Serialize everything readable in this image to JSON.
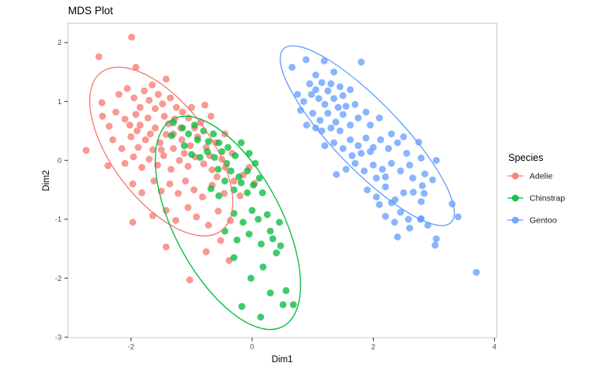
{
  "title": "MDS Plot",
  "chart_data": {
    "type": "scatter",
    "title": "MDS Plot",
    "xlabel": "Dim1",
    "ylabel": "Dim2",
    "xlim": [
      -3.04,
      4.04
    ],
    "ylim": [
      -3.01,
      2.33
    ],
    "x_ticks": [
      -2,
      0,
      2,
      4
    ],
    "y_ticks": [
      2,
      1,
      0,
      -1,
      -2,
      -3
    ],
    "grid": false,
    "point_radius_px": 4.4,
    "point_alpha": 0.75,
    "legend": {
      "title": "Species",
      "position": "right"
    },
    "series": [
      {
        "name": "Adelie",
        "color": "#F8766D",
        "points": [
          [
            -1.99,
            2.09
          ],
          [
            -2.53,
            1.76
          ],
          [
            -1.92,
            1.58
          ],
          [
            -1.42,
            1.38
          ],
          [
            -2.48,
            0.98
          ],
          [
            -1.65,
            1.28
          ],
          [
            -2.2,
            1.12
          ],
          [
            -2.06,
            1.22
          ],
          [
            -1.95,
            1.06
          ],
          [
            -1.78,
            1.18
          ],
          [
            -1.7,
            1.02
          ],
          [
            -1.55,
            1.12
          ],
          [
            -1.48,
            0.96
          ],
          [
            -1.35,
            1.06
          ],
          [
            -1.25,
            0.9
          ],
          [
            -0.78,
            0.94
          ],
          [
            -2.47,
            0.75
          ],
          [
            -2.36,
            0.58
          ],
          [
            -2.1,
            0.7
          ],
          [
            -1.92,
            0.78
          ],
          [
            -1.85,
            0.6
          ],
          [
            -1.72,
            0.72
          ],
          [
            -1.6,
            0.55
          ],
          [
            -1.45,
            0.75
          ],
          [
            -1.38,
            0.62
          ],
          [
            -1.28,
            0.7
          ],
          [
            -1.18,
            0.55
          ],
          [
            -1.05,
            0.72
          ],
          [
            -0.95,
            0.55
          ],
          [
            -0.85,
            0.64
          ],
          [
            -2.74,
            0.17
          ],
          [
            -2.3,
            0.35
          ],
          [
            -2.15,
            0.2
          ],
          [
            -2.0,
            0.4
          ],
          [
            -1.88,
            0.22
          ],
          [
            -1.76,
            0.35
          ],
          [
            -1.64,
            0.18
          ],
          [
            -1.52,
            0.3
          ],
          [
            -1.42,
            0.44
          ],
          [
            -1.3,
            0.2
          ],
          [
            -1.16,
            0.35
          ],
          [
            -1.02,
            0.25
          ],
          [
            -0.9,
            0.4
          ],
          [
            -0.76,
            0.22
          ],
          [
            -0.6,
            0.3
          ],
          [
            -2.38,
            -0.09
          ],
          [
            -2.1,
            -0.05
          ],
          [
            -1.96,
            0.06
          ],
          [
            -1.82,
            -0.12
          ],
          [
            -1.7,
            0.02
          ],
          [
            -1.56,
            -0.08
          ],
          [
            -1.46,
            0.08
          ],
          [
            -1.34,
            -0.15
          ],
          [
            -1.2,
            0.0
          ],
          [
            -1.06,
            -0.1
          ],
          [
            -0.94,
            0.06
          ],
          [
            -0.8,
            -0.06
          ],
          [
            -0.66,
            -0.16
          ],
          [
            -0.5,
            0.02
          ],
          [
            -0.05,
            -0.12
          ],
          [
            -1.97,
            -0.4
          ],
          [
            -1.82,
            -0.55
          ],
          [
            -1.62,
            -0.35
          ],
          [
            -1.5,
            -0.52
          ],
          [
            -1.36,
            -0.4
          ],
          [
            -1.22,
            -0.56
          ],
          [
            -1.1,
            -0.35
          ],
          [
            -0.96,
            -0.5
          ],
          [
            -0.82,
            -0.62
          ],
          [
            -0.66,
            -0.42
          ],
          [
            -0.46,
            -0.56
          ],
          [
            0.04,
            -0.39
          ],
          [
            -1.64,
            -0.94
          ],
          [
            -1.97,
            -1.05
          ],
          [
            -1.42,
            -0.85
          ],
          [
            -1.26,
            -1.02
          ],
          [
            -1.06,
            -0.8
          ],
          [
            -0.92,
            -0.96
          ],
          [
            -0.72,
            -1.1
          ],
          [
            -0.56,
            -0.86
          ],
          [
            -0.36,
            -1.02
          ],
          [
            -1.42,
            -1.47
          ],
          [
            -1.03,
            -2.03
          ],
          [
            -0.76,
            -1.55
          ],
          [
            -0.52,
            -1.36
          ],
          [
            -0.38,
            -1.7
          ],
          [
            -1.6,
            0.88
          ],
          [
            -1.5,
            0.18
          ],
          [
            -1.68,
            0.45
          ],
          [
            -1.9,
            0.5
          ],
          [
            -1.3,
            0.45
          ],
          [
            -1.12,
            0.12
          ],
          [
            -0.7,
            0.08
          ],
          [
            -0.58,
            -0.28
          ],
          [
            -1.85,
            0.9
          ],
          [
            -2.25,
            0.82
          ],
          [
            -2.02,
            0.6
          ],
          [
            -1.15,
            0.82
          ],
          [
            -1.0,
            0.9
          ],
          [
            -0.68,
            0.75
          ],
          [
            -0.44,
            -0.12
          ],
          [
            -0.3,
            -0.35
          ],
          [
            -0.2,
            -0.6
          ],
          [
            -0.15,
            -0.25
          ],
          [
            -0.33,
            0.12
          ],
          [
            -0.45,
            0.45
          ]
        ]
      },
      {
        "name": "Chinstrap",
        "color": "#00BA38",
        "points": [
          [
            -1.3,
            0.64
          ],
          [
            -1.33,
            0.42
          ],
          [
            -1.15,
            0.55
          ],
          [
            -1.05,
            0.45
          ],
          [
            -0.95,
            0.6
          ],
          [
            -0.9,
            0.35
          ],
          [
            -0.8,
            0.5
          ],
          [
            -0.72,
            0.32
          ],
          [
            -0.64,
            0.45
          ],
          [
            -0.55,
            0.3
          ],
          [
            -0.5,
            0.15
          ],
          [
            -0.62,
            0.05
          ],
          [
            -0.74,
            0.15
          ],
          [
            -0.86,
            0.05
          ],
          [
            -1.0,
            0.1
          ],
          [
            -1.12,
            0.25
          ],
          [
            -0.4,
            0.22
          ],
          [
            -0.28,
            0.08
          ],
          [
            -0.42,
            -0.05
          ],
          [
            -0.56,
            -0.15
          ],
          [
            -0.35,
            -0.18
          ],
          [
            -0.22,
            -0.28
          ],
          [
            -0.18,
            0.3
          ],
          [
            -0.05,
            0.12
          ],
          [
            0.05,
            -0.05
          ],
          [
            -0.08,
            -0.18
          ],
          [
            -0.45,
            -0.35
          ],
          [
            -0.3,
            -0.5
          ],
          [
            -0.18,
            -0.38
          ],
          [
            -0.08,
            -0.55
          ],
          [
            0.02,
            -0.42
          ],
          [
            -0.55,
            -0.6
          ],
          [
            -0.68,
            -0.48
          ],
          [
            0.12,
            -0.3
          ],
          [
            0.17,
            -0.55
          ],
          [
            -0.3,
            -0.9
          ],
          [
            -0.15,
            -1.05
          ],
          [
            0.0,
            -0.85
          ],
          [
            0.1,
            -1.0
          ],
          [
            0.25,
            -0.92
          ],
          [
            -0.45,
            -1.2
          ],
          [
            -0.25,
            -1.35
          ],
          [
            -0.05,
            -1.25
          ],
          [
            0.15,
            -1.42
          ],
          [
            0.3,
            -1.2
          ],
          [
            0.45,
            -1.05
          ],
          [
            0.34,
            -1.33
          ],
          [
            0.47,
            -1.45
          ],
          [
            0.4,
            -1.57
          ],
          [
            0.18,
            -1.81
          ],
          [
            0.56,
            -2.21
          ],
          [
            0.14,
            -2.66
          ],
          [
            0.51,
            -2.45
          ],
          [
            0.68,
            -2.45
          ],
          [
            -0.17,
            -2.48
          ],
          [
            0.3,
            -2.25
          ],
          [
            -0.02,
            -2.0
          ],
          [
            -0.3,
            -1.65
          ]
        ]
      },
      {
        "name": "Gentoo",
        "color": "#619CFF",
        "points": [
          [
            0.89,
            1.71
          ],
          [
            0.66,
            1.58
          ],
          [
            1.19,
            1.69
          ],
          [
            1.8,
            1.67
          ],
          [
            1.05,
            1.45
          ],
          [
            1.35,
            1.5
          ],
          [
            0.95,
            1.3
          ],
          [
            1.05,
            1.2
          ],
          [
            1.15,
            1.32
          ],
          [
            1.25,
            1.18
          ],
          [
            1.1,
            1.05
          ],
          [
            0.98,
            1.12
          ],
          [
            1.3,
            1.3
          ],
          [
            1.45,
            1.25
          ],
          [
            1.2,
            0.95
          ],
          [
            1.35,
            1.05
          ],
          [
            1.5,
            1.1
          ],
          [
            1.62,
            1.2
          ],
          [
            0.85,
            1.0
          ],
          [
            0.75,
            1.12
          ],
          [
            1.0,
            0.8
          ],
          [
            1.12,
            0.68
          ],
          [
            1.25,
            0.8
          ],
          [
            1.38,
            0.65
          ],
          [
            1.5,
            0.78
          ],
          [
            1.62,
            0.6
          ],
          [
            1.75,
            0.72
          ],
          [
            1.88,
            0.82
          ],
          [
            1.45,
            0.5
          ],
          [
            1.3,
            0.55
          ],
          [
            1.15,
            0.5
          ],
          [
            1.55,
            0.92
          ],
          [
            1.7,
            0.95
          ],
          [
            1.95,
            0.6
          ],
          [
            2.1,
            0.72
          ],
          [
            1.35,
            0.3
          ],
          [
            1.5,
            0.2
          ],
          [
            1.62,
            0.35
          ],
          [
            1.75,
            0.25
          ],
          [
            1.88,
            0.38
          ],
          [
            2.0,
            0.22
          ],
          [
            2.12,
            0.35
          ],
          [
            2.25,
            0.2
          ],
          [
            2.4,
            0.3
          ],
          [
            1.2,
            0.25
          ],
          [
            1.65,
            0.08
          ],
          [
            1.8,
            0.12
          ],
          [
            1.95,
            0.15
          ],
          [
            2.3,
            0.45
          ],
          [
            2.5,
            0.4
          ],
          [
            2.75,
            0.31
          ],
          [
            1.55,
            -0.15
          ],
          [
            1.7,
            -0.05
          ],
          [
            1.85,
            -0.18
          ],
          [
            2.0,
            -0.08
          ],
          [
            2.15,
            -0.15
          ],
          [
            2.3,
            -0.05
          ],
          [
            2.45,
            -0.18
          ],
          [
            2.6,
            -0.08
          ],
          [
            2.79,
            0.04
          ],
          [
            3.04,
            0.0
          ],
          [
            2.85,
            -0.23
          ],
          [
            1.39,
            -0.24
          ],
          [
            2.05,
            -0.3
          ],
          [
            2.2,
            -0.28
          ],
          [
            1.9,
            -0.5
          ],
          [
            2.05,
            -0.62
          ],
          [
            2.2,
            -0.45
          ],
          [
            2.36,
            -0.67
          ],
          [
            2.5,
            -0.55
          ],
          [
            2.66,
            -0.54
          ],
          [
            2.98,
            -0.33
          ],
          [
            2.81,
            -0.43
          ],
          [
            2.84,
            -0.56
          ],
          [
            2.79,
            -0.7
          ],
          [
            3.3,
            -0.74
          ],
          [
            2.1,
            -0.75
          ],
          [
            2.3,
            -0.72
          ],
          [
            2.2,
            -0.95
          ],
          [
            2.35,
            -1.05
          ],
          [
            2.58,
            -1.0
          ],
          [
            2.78,
            -1.0
          ],
          [
            3.4,
            -0.96
          ],
          [
            2.79,
            -0.99
          ],
          [
            2.45,
            -0.88
          ],
          [
            2.6,
            -1.15
          ],
          [
            2.9,
            -1.1
          ],
          [
            3.04,
            -1.33
          ],
          [
            3.02,
            -1.44
          ],
          [
            3.7,
            -1.9
          ],
          [
            2.4,
            -1.3
          ],
          [
            0.8,
            0.85
          ],
          [
            0.9,
            0.6
          ],
          [
            2.55,
            0.12
          ],
          [
            2.65,
            -0.3
          ],
          [
            1.42,
            0.9
          ],
          [
            1.05,
            0.55
          ]
        ]
      }
    ],
    "ellipses": [
      {
        "series": "Adelie",
        "cx": -1.5,
        "cy": 0.15,
        "a": 1.67,
        "b": 0.81,
        "angle_deg": -54
      },
      {
        "series": "Chinstrap",
        "cx": -0.4,
        "cy": -1.06,
        "a": 1.98,
        "b": 0.89,
        "angle_deg": -63
      },
      {
        "series": "Gentoo",
        "cx": 1.9,
        "cy": 0.42,
        "a": 2.02,
        "b": 0.56,
        "angle_deg": -47
      }
    ]
  }
}
